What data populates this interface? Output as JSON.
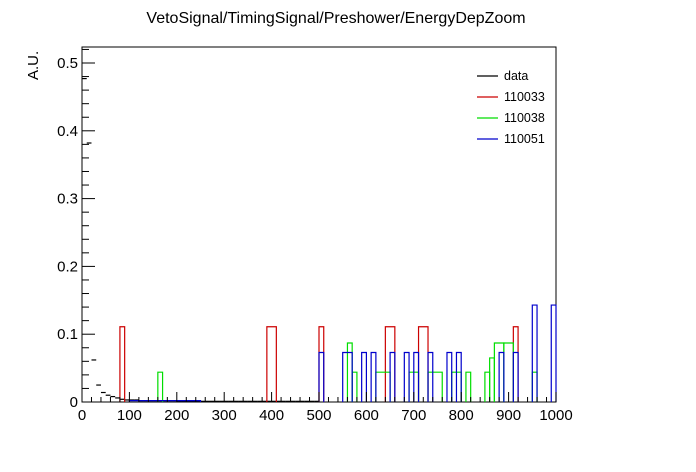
{
  "chart_data": {
    "type": "histogram",
    "title": "VetoSignal/TimingSignal/Preshower/EnergyDepZoom",
    "xlabel": "",
    "ylabel": "A.U.",
    "xlim": [
      0,
      1000
    ],
    "ylim": [
      0,
      0.525
    ],
    "bin_width": 10,
    "x_ticks": [
      "0",
      "100",
      "200",
      "300",
      "400",
      "500",
      "600",
      "700",
      "800",
      "900",
      "1000"
    ],
    "y_ticks": [
      "0",
      "0.1",
      "0.2",
      "0.3",
      "0.4",
      "0.5"
    ],
    "x_tick_values": [
      0,
      100,
      200,
      300,
      400,
      500,
      600,
      700,
      800,
      900,
      1000
    ],
    "y_tick_values": [
      0,
      0.1,
      0.2,
      0.3,
      0.4,
      0.5
    ],
    "legend_position": "top-right",
    "series": [
      {
        "name": "data",
        "color": "#000000",
        "style": "points",
        "points": [
          [
            5,
            0.477
          ],
          [
            15,
            0.382
          ],
          [
            25,
            0.062
          ],
          [
            35,
            0.025
          ],
          [
            45,
            0.014
          ],
          [
            55,
            0.01
          ],
          [
            65,
            0.008
          ],
          [
            75,
            0.006
          ],
          [
            85,
            0.004
          ],
          [
            95,
            0.003
          ],
          [
            105,
            0.003
          ],
          [
            115,
            0.003
          ],
          [
            125,
            0.002
          ],
          [
            135,
            0.002
          ],
          [
            145,
            0.002
          ],
          [
            155,
            0.002
          ],
          [
            165,
            0.002
          ],
          [
            175,
            0.002
          ],
          [
            185,
            0.002
          ],
          [
            195,
            0.002
          ],
          [
            205,
            0.001
          ],
          [
            215,
            0.001
          ],
          [
            225,
            0.001
          ],
          [
            235,
            0.001
          ],
          [
            245,
            0.001
          ],
          [
            255,
            0.001
          ],
          [
            265,
            0.001
          ],
          [
            275,
            0.001
          ],
          [
            285,
            0.001
          ],
          [
            295,
            0.001
          ],
          [
            305,
            0.001
          ],
          [
            315,
            0.001
          ],
          [
            325,
            0.001
          ],
          [
            335,
            0.001
          ],
          [
            345,
            0.001
          ],
          [
            355,
            0.001
          ],
          [
            365,
            0.001
          ],
          [
            375,
            0.001
          ],
          [
            385,
            0.001
          ],
          [
            395,
            0.001
          ],
          [
            405,
            0.001
          ],
          [
            415,
            0.001
          ],
          [
            425,
            0.001
          ],
          [
            435,
            0.001
          ],
          [
            445,
            0.001
          ],
          [
            455,
            0.001
          ],
          [
            465,
            0.001
          ],
          [
            475,
            0.001
          ],
          [
            485,
            0.001
          ],
          [
            495,
            0.001
          ]
        ]
      },
      {
        "name": "110033",
        "color": "#cc0000",
        "style": "step",
        "bins": [
          [
            80,
            90,
            0.111
          ],
          [
            390,
            410,
            0.111
          ],
          [
            500,
            510,
            0.111
          ],
          [
            640,
            660,
            0.111
          ],
          [
            710,
            730,
            0.111
          ],
          [
            910,
            920,
            0.111
          ]
        ]
      },
      {
        "name": "110038",
        "color": "#00dd00",
        "style": "step",
        "bins": [
          [
            160,
            170,
            0.044
          ],
          [
            560,
            570,
            0.087
          ],
          [
            570,
            580,
            0.044
          ],
          [
            620,
            650,
            0.044
          ],
          [
            690,
            710,
            0.044
          ],
          [
            730,
            760,
            0.044
          ],
          [
            780,
            800,
            0.044
          ],
          [
            810,
            820,
            0.044
          ],
          [
            850,
            860,
            0.044
          ],
          [
            860,
            870,
            0.065
          ],
          [
            870,
            890,
            0.087
          ],
          [
            890,
            910,
            0.087
          ],
          [
            950,
            960,
            0.044
          ]
        ]
      },
      {
        "name": "110051",
        "color": "#0000cc",
        "style": "step",
        "bins": [
          [
            100,
            250,
            0.002
          ],
          [
            500,
            510,
            0.073
          ],
          [
            550,
            570,
            0.073
          ],
          [
            590,
            600,
            0.073
          ],
          [
            610,
            620,
            0.073
          ],
          [
            650,
            660,
            0.073
          ],
          [
            680,
            690,
            0.073
          ],
          [
            700,
            710,
            0.073
          ],
          [
            730,
            740,
            0.073
          ],
          [
            770,
            780,
            0.073
          ],
          [
            790,
            800,
            0.073
          ],
          [
            880,
            890,
            0.073
          ],
          [
            910,
            920,
            0.073
          ],
          [
            950,
            960,
            0.143
          ],
          [
            990,
            1000,
            0.143
          ]
        ]
      }
    ]
  }
}
